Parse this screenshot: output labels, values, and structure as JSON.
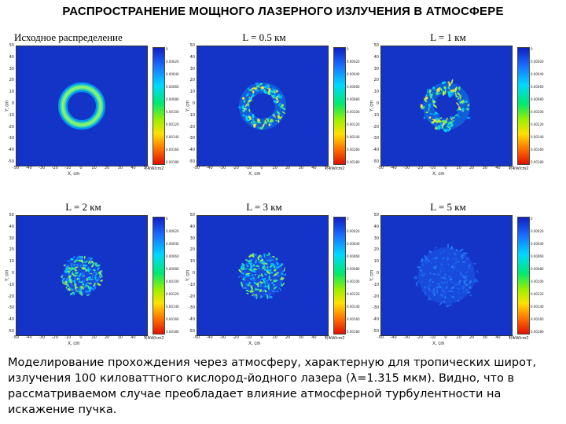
{
  "title": "РАСПРОСТРАНЕНИЕ МОЩНОГО ЛАЗЕРНОГО ИЗЛУЧЕНИЯ В АТМОСФЕРЕ",
  "axis": {
    "y_ticks": [
      "50",
      "40",
      "30",
      "20",
      "10",
      "0",
      "-10",
      "-20",
      "-30",
      "-40",
      "-50"
    ],
    "x_ticks": [
      "-50",
      "-40",
      "-30",
      "-20",
      "-10",
      "0",
      "10",
      "20",
      "30",
      "40",
      "50"
    ],
    "x_label": "X, cm",
    "y_label": "Y, cm",
    "colorbar_unit": "I, kW/cm2"
  },
  "panels": [
    {
      "caption": "Исходное распределение",
      "pattern": "ring"
    },
    {
      "caption": "L = 0.5 км",
      "pattern": "ring-speckle"
    },
    {
      "caption": "L = 1 км",
      "pattern": "ring-broken"
    },
    {
      "caption": "L = 2 км",
      "pattern": "spot-speckle"
    },
    {
      "caption": "L = 3 км",
      "pattern": "spot-speckle-weak"
    },
    {
      "caption": "L = 5 км",
      "pattern": "diffuse"
    }
  ],
  "paragraph": [
    "Моделирование прохождения через атмосферу, характерную для тропических широт,",
    "излучения 100 киловаттного кислород-йодного лазера (λ=1.315 мкм). Видно, что в",
    "рассматриваемом случае преобладает влияние атмосферной турбулентности на",
    "искажение пучка."
  ],
  "colors": {
    "plot_bg": "#1434c8",
    "ring": "#3cd8a0",
    "ring_inner": "#00b8ff"
  }
}
